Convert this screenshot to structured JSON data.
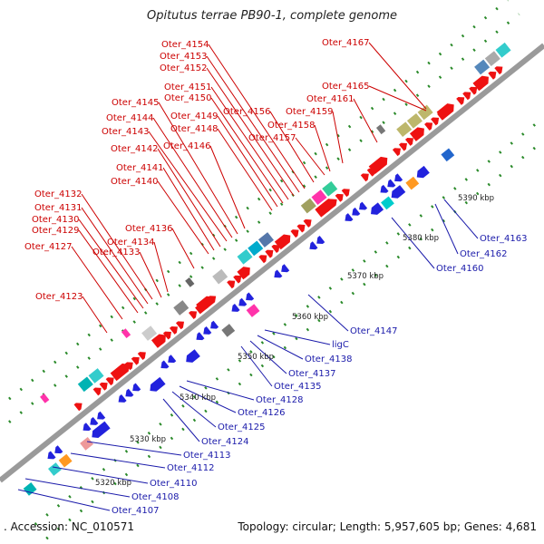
{
  "title": "Opitutus terrae PB90-1, complete genome",
  "footer": {
    "accession": ". Accession: NC_010571",
    "summary": "Topology: circular; Length: 5,957,605 bp; Genes: 4,681"
  },
  "colors": {
    "backbone": "#9a9a9a",
    "forward_genes": "#ee1111",
    "reverse_genes": "#2222dd",
    "forward_labels": "#cc0000",
    "reverse_labels": "#1a1aaa",
    "tick_dots": "#2a8a2a"
  },
  "ticks": [
    {
      "label": "5320 kbp",
      "kbp": 5320
    },
    {
      "label": "5330 kbp",
      "kbp": 5330
    },
    {
      "label": "5340 kbp",
      "kbp": 5340
    },
    {
      "label": "5350 kbp",
      "kbp": 5350
    },
    {
      "label": "5360 kbp",
      "kbp": 5360
    },
    {
      "label": "5370 kbp",
      "kbp": 5370
    },
    {
      "label": "5380 kbp",
      "kbp": 5380
    },
    {
      "label": "5390 kbp",
      "kbp": 5390
    }
  ],
  "forward_labels": [
    "Oter_4123",
    "Oter_4127",
    "Oter_4129",
    "Oter_4130",
    "Oter_4131",
    "Oter_4132",
    "Oter_4133",
    "Oter_4134",
    "Oter_4136",
    "Oter_4140",
    "Oter_4141",
    "Oter_4142",
    "Oter_4143",
    "Oter_4144",
    "Oter_4145",
    "Oter_4146",
    "Oter_4148",
    "Oter_4149",
    "Oter_4150",
    "Oter_4151",
    "Oter_4152",
    "Oter_4153",
    "Oter_4154",
    "Oter_4156",
    "Oter_4157",
    "Oter_4158",
    "Oter_4159",
    "Oter_4161",
    "Oter_4165",
    "Oter_4167"
  ],
  "reverse_labels": [
    "Oter_4107",
    "Oter_4108",
    "Oter_4110",
    "Oter_4112",
    "Oter_4113",
    "Oter_4124",
    "Oter_4125",
    "Oter_4126",
    "Oter_4128",
    "Oter_4135",
    "Oter_4137",
    "Oter_4138",
    "ligC",
    "Oter_4147",
    "Oter_4160",
    "Oter_4162",
    "Oter_4163"
  ]
}
